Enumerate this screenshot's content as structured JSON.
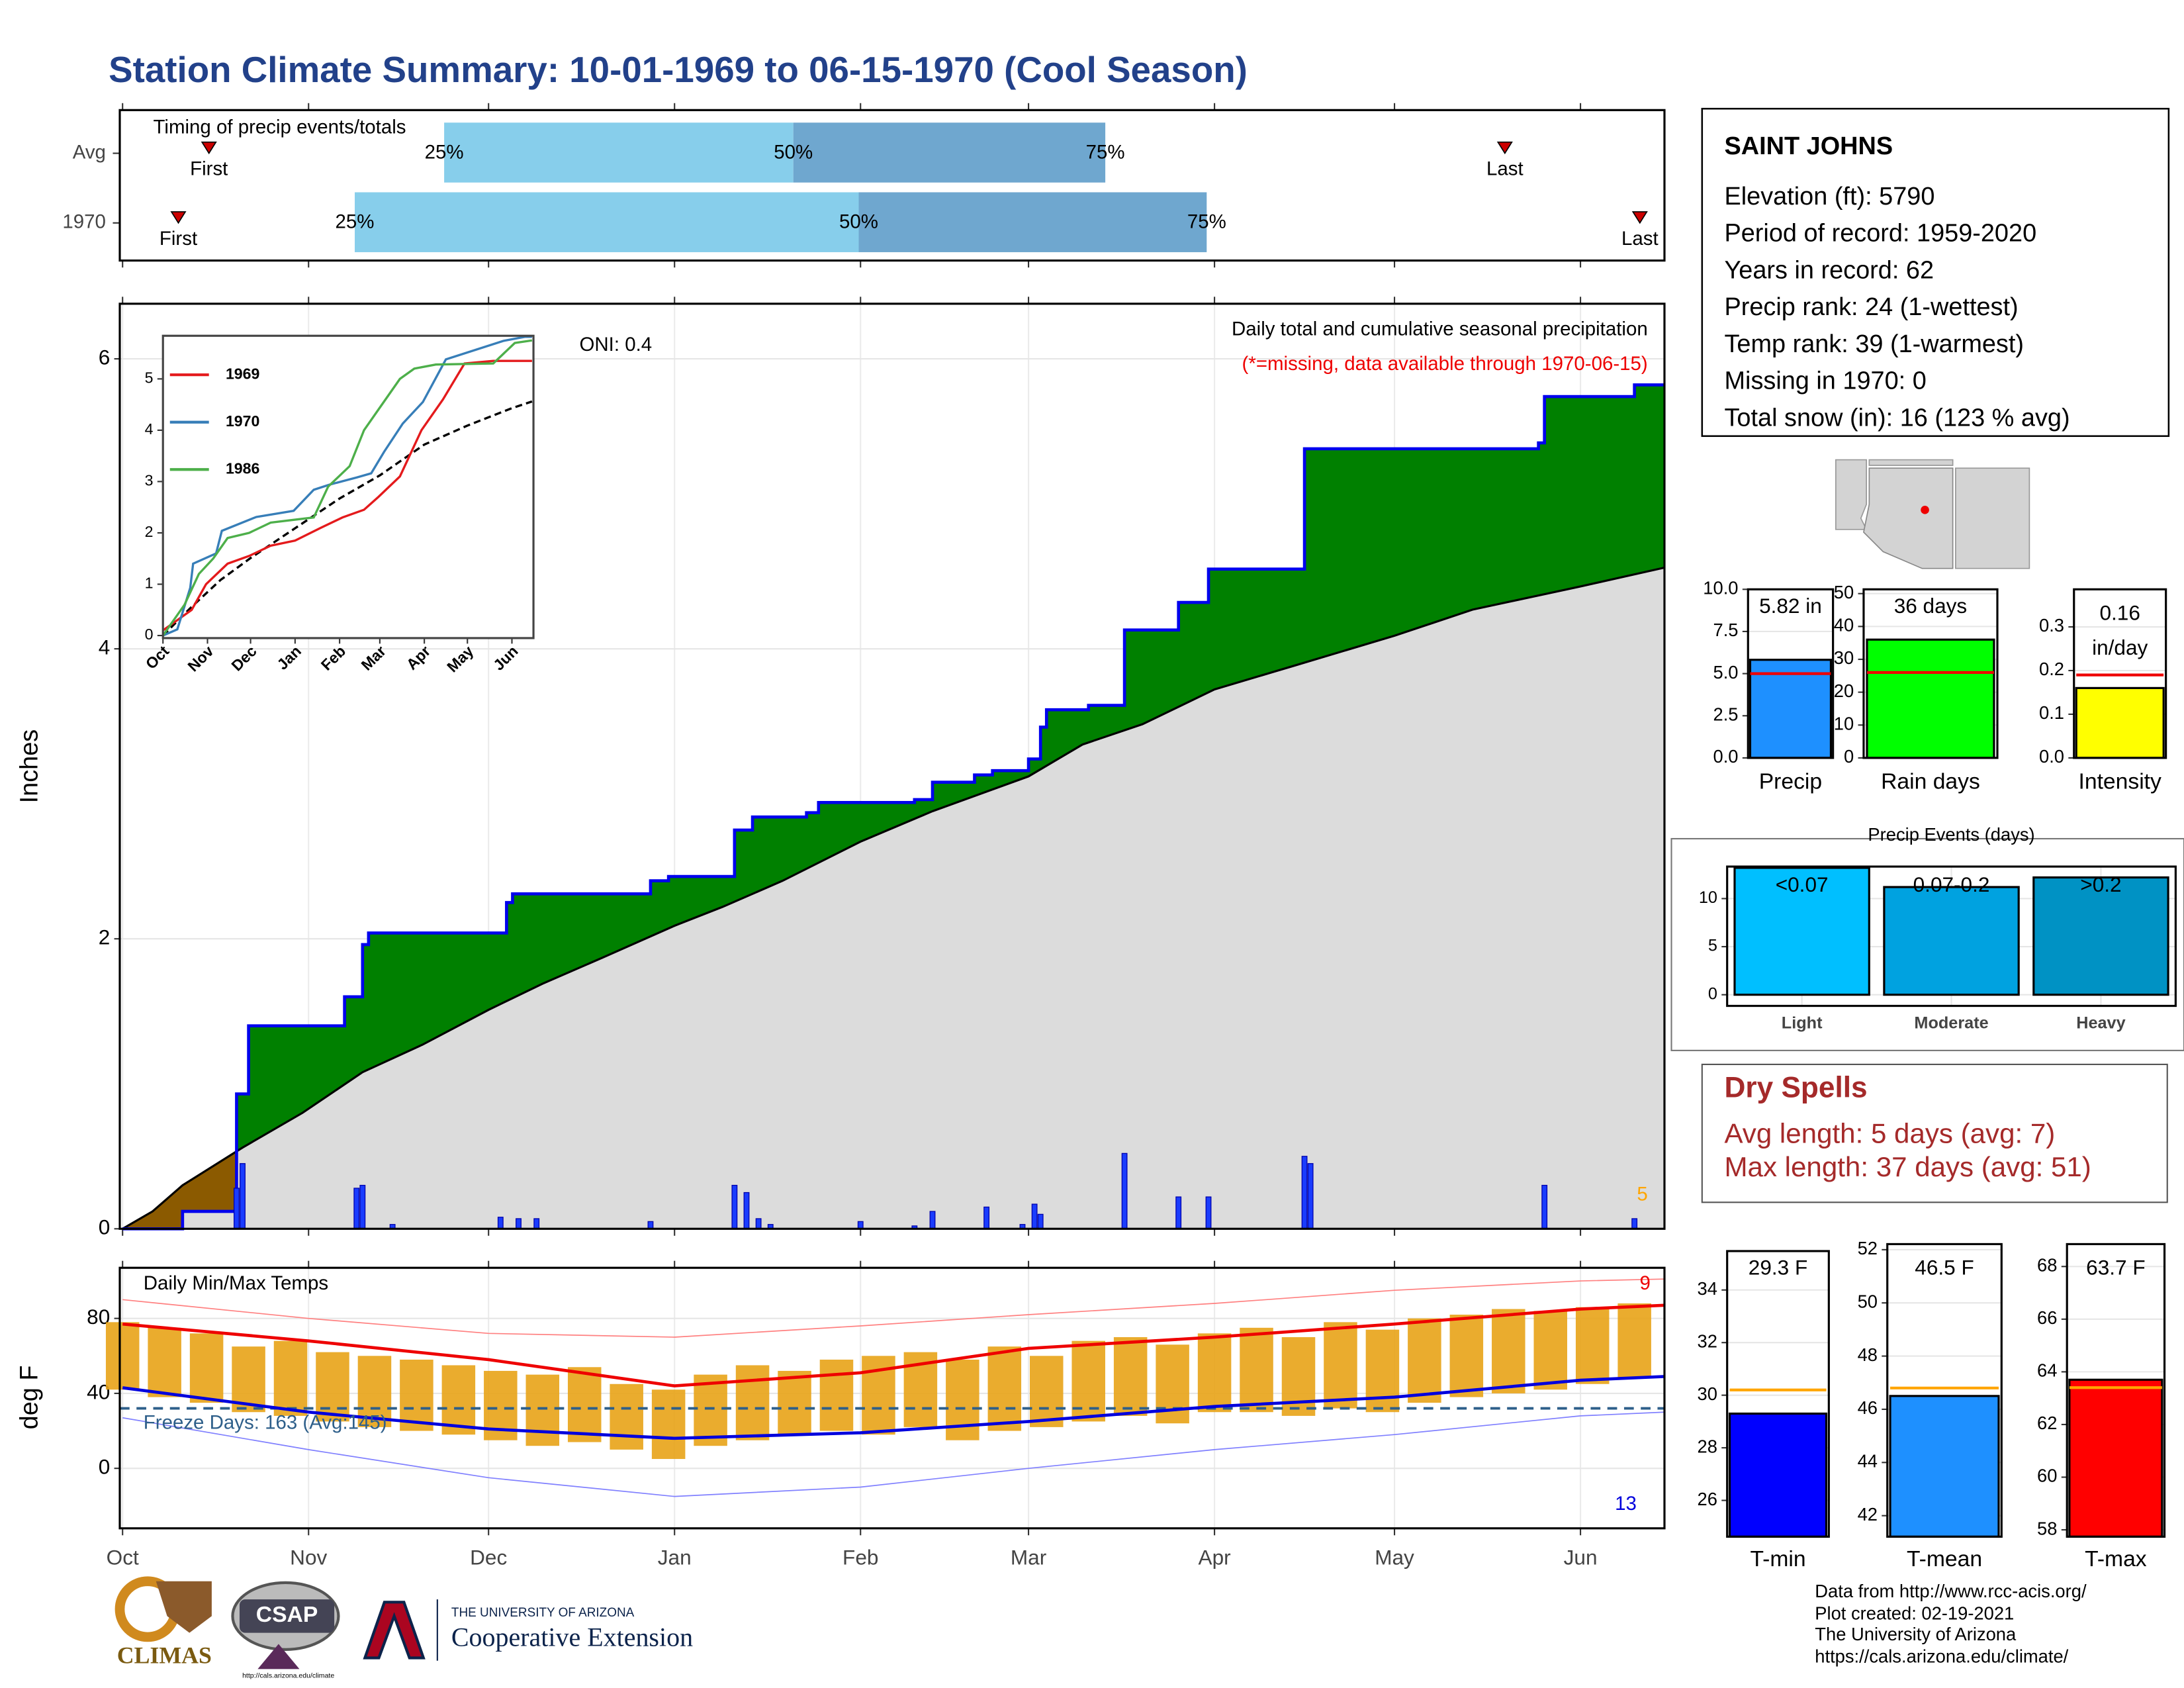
{
  "title": "Station Climate Summary: 10-01-1969 to 06-15-1970 (Cool Season)",
  "station": {
    "name": "SAINT JOHNS",
    "lines": [
      "Elevation (ft): 5790",
      "Period of record: 1959-2020",
      "Years in record: 62",
      "Precip rank: 24 (1-wettest)",
      "Temp rank: 39 (1-warmest)",
      "Missing in 1970: 0",
      "Total snow (in): 16 (123 % avg)"
    ]
  },
  "dry_spells": {
    "title": "Dry Spells",
    "lines": [
      "Avg length: 5 days (avg: 7)",
      "Max length: 37 days (avg: 51)"
    ]
  },
  "footer": [
    "Data from http://www.rcc-acis.org/",
    "Plot created: 02-19-2021",
    "The University of Arizona",
    "https://cals.arizona.edu/climate/"
  ],
  "logos": {
    "climas": "CLIMAS",
    "csap": "CSAP",
    "csap_url": "http://cals.arizona.edu/climate",
    "university": "THE UNIVERSITY OF ARIZONA",
    "extension": "Cooperative Extension"
  },
  "chart_data": [
    {
      "type": "timing",
      "title": "Timing of precip events/totals",
      "categories": [
        "Avg",
        "1970"
      ],
      "xlim": [
        0,
        257
      ],
      "xticks": [
        0,
        31,
        61,
        92,
        123,
        151,
        182,
        212,
        243
      ],
      "labels": {
        "first": "First",
        "last": "Last",
        "q25": "25%",
        "q50": "50%",
        "q75": "75%"
      },
      "rows": [
        {
          "first": 14.4,
          "q25": 53.6,
          "q50": 111.8,
          "q75": 163.8,
          "last": 230.4
        },
        {
          "first": 9.3,
          "q25": 38.7,
          "q50": 122.7,
          "q75": 180.7,
          "last": 252.9
        }
      ],
      "colors": {
        "early": "#87ceeb",
        "late": "#6fa7cf",
        "marker": "#cc0000"
      }
    },
    {
      "type": "cumulative",
      "ylabel": "Inches",
      "xlim": [
        0,
        257
      ],
      "ylim": [
        0,
        6.38
      ],
      "yticks": [
        0,
        2,
        4,
        6
      ],
      "xticks": [
        0,
        31,
        61,
        92,
        123,
        151,
        182,
        212,
        243
      ],
      "grid": true,
      "annotations": {
        "oni": "ONI: 0.4",
        "title": "Daily total and cumulative seasonal precipitation",
        "missing": "(*=missing, data available through 1970-06-15)",
        "snow_count": "5"
      },
      "observed": {
        "color": "#0000ee",
        "fill": "#008000",
        "x": [
          0,
          10,
          10,
          19,
          19,
          21,
          21,
          37,
          37,
          40,
          40,
          41,
          41,
          64,
          64,
          65,
          65,
          88,
          88,
          91,
          91,
          102,
          102,
          105,
          105,
          114,
          114,
          116,
          116,
          132,
          132,
          135,
          135,
          142,
          142,
          145,
          145,
          151,
          151,
          153,
          153,
          154,
          154,
          161,
          161,
          167,
          167,
          176,
          176,
          181,
          181,
          197,
          197,
          236,
          236,
          237,
          237,
          252,
          252,
          257
        ],
        "values": [
          0,
          0,
          0.12,
          0.12,
          0.93,
          0.93,
          1.4,
          1.4,
          1.6,
          1.6,
          1.96,
          1.96,
          2.04,
          2.04,
          2.25,
          2.25,
          2.31,
          2.31,
          2.4,
          2.4,
          2.43,
          2.43,
          2.75,
          2.75,
          2.84,
          2.84,
          2.87,
          2.87,
          2.94,
          2.94,
          2.96,
          2.96,
          3.08,
          3.08,
          3.13,
          3.13,
          3.16,
          3.16,
          3.24,
          3.24,
          3.46,
          3.46,
          3.58,
          3.58,
          3.61,
          3.61,
          4.13,
          4.13,
          4.32,
          4.32,
          4.55,
          4.55,
          5.38,
          5.38,
          5.42,
          5.42,
          5.74,
          5.74,
          5.82,
          5.82
        ]
      },
      "average": {
        "color": "#000000",
        "fill": "#dcdcdc",
        "below_fill": "#8b5a00",
        "x": [
          0,
          5,
          10,
          20,
          30,
          40,
          50,
          61,
          70,
          80,
          92,
          100,
          110,
          123,
          135,
          151,
          160,
          170,
          182,
          195,
          212,
          225,
          243,
          257
        ],
        "values": [
          0,
          0.12,
          0.3,
          0.56,
          0.8,
          1.08,
          1.27,
          1.51,
          1.69,
          1.87,
          2.09,
          2.22,
          2.4,
          2.67,
          2.88,
          3.12,
          3.34,
          3.48,
          3.72,
          3.88,
          4.09,
          4.27,
          4.43,
          4.56
        ]
      },
      "daily": {
        "color": "#1a3cff",
        "x": [
          19,
          20,
          39,
          40,
          45,
          63,
          66,
          69,
          88,
          102,
          104,
          106,
          108,
          123,
          132,
          135,
          144,
          150,
          152,
          153,
          167,
          176,
          181,
          197,
          198,
          237,
          252
        ],
        "values": [
          0.28,
          0.45,
          0.28,
          0.3,
          0.03,
          0.08,
          0.07,
          0.07,
          0.05,
          0.3,
          0.25,
          0.07,
          0.03,
          0.05,
          0.02,
          0.12,
          0.15,
          0.03,
          0.17,
          0.1,
          0.52,
          0.22,
          0.22,
          0.5,
          0.45,
          0.3,
          0.07
        ]
      },
      "annotation_colors": {
        "missing": "#ee0000",
        "snow_count": "#ffa500"
      }
    },
    {
      "type": "line",
      "xlim": [
        0,
        258
      ],
      "ylim": [
        -0.05,
        5.84
      ],
      "yticks": [
        0,
        1,
        2,
        3,
        4,
        5
      ],
      "xticks": [
        {
          "value": 0,
          "label": "Oct"
        },
        {
          "value": 31,
          "label": "Nov"
        },
        {
          "value": 61,
          "label": "Dec"
        },
        {
          "value": 92,
          "label": "Jan"
        },
        {
          "value": 123,
          "label": "Feb"
        },
        {
          "value": 151,
          "label": "Mar"
        },
        {
          "value": 182,
          "label": "Apr"
        },
        {
          "value": 212,
          "label": "May"
        },
        {
          "value": 243,
          "label": "Jun"
        }
      ],
      "series": [
        {
          "name": "1969",
          "color": "#e41a1c",
          "x": [
            0,
            10,
            20,
            30,
            45,
            60,
            75,
            92,
            110,
            125,
            140,
            150,
            165,
            180,
            195,
            210,
            230,
            257
          ],
          "values": [
            0.1,
            0.3,
            0.5,
            1.0,
            1.4,
            1.55,
            1.75,
            1.85,
            2.1,
            2.3,
            2.45,
            2.7,
            3.1,
            4.0,
            4.6,
            5.3,
            5.35,
            5.35
          ]
        },
        {
          "name": "1970",
          "color": "#377eb8",
          "x": [
            0,
            10,
            19,
            21,
            37,
            41,
            65,
            91,
            105,
            116,
            135,
            145,
            154,
            167,
            181,
            197,
            237,
            252,
            257
          ],
          "values": [
            0,
            0.12,
            0.93,
            1.4,
            1.6,
            2.04,
            2.31,
            2.43,
            2.84,
            2.94,
            3.08,
            3.16,
            3.58,
            4.13,
            4.55,
            5.38,
            5.74,
            5.82,
            5.82
          ]
        },
        {
          "name": "1986",
          "color": "#4daf4a",
          "x": [
            0,
            15,
            25,
            35,
            45,
            60,
            75,
            90,
            105,
            115,
            130,
            140,
            150,
            165,
            175,
            190,
            230,
            245,
            257
          ],
          "values": [
            0,
            0.6,
            1.2,
            1.5,
            1.9,
            2.0,
            2.2,
            2.25,
            2.3,
            2.9,
            3.3,
            4.0,
            4.4,
            5.0,
            5.2,
            5.28,
            5.3,
            5.7,
            5.75
          ]
        }
      ],
      "average": {
        "color": "#000000",
        "x": [
          0,
          20,
          40,
          61,
          92,
          123,
          151,
          182,
          212,
          243,
          257
        ],
        "values": [
          0,
          0.56,
          1.08,
          1.51,
          2.09,
          2.67,
          3.12,
          3.72,
          4.09,
          4.43,
          4.56
        ]
      }
    },
    {
      "type": "temps",
      "title": "Daily Min/Max Temps",
      "ylabel": "deg F",
      "xlim": [
        0,
        257
      ],
      "ylim": [
        -32,
        107
      ],
      "yticks": [
        0,
        40,
        80
      ],
      "grid": true,
      "xticks": [
        {
          "value": 0,
          "label": "Oct"
        },
        {
          "value": 31,
          "label": "Nov"
        },
        {
          "value": 61,
          "label": "Dec"
        },
        {
          "value": 92,
          "label": "Jan"
        },
        {
          "value": 123,
          "label": "Feb"
        },
        {
          "value": 151,
          "label": "Mar"
        },
        {
          "value": 182,
          "label": "Apr"
        },
        {
          "value": 212,
          "label": "May"
        },
        {
          "value": 243,
          "label": "Jun"
        }
      ],
      "freeze_line": 32,
      "freeze_text": "Freeze Days: 163 (Avg:145)",
      "record_high_count": "9",
      "record_low_count": "13",
      "daily": {
        "color": "#e8a317",
        "x": [
          0,
          7,
          14,
          21,
          28,
          35,
          42,
          49,
          56,
          63,
          70,
          77,
          84,
          91,
          98,
          105,
          112,
          119,
          126,
          133,
          140,
          147,
          154,
          161,
          168,
          175,
          182,
          189,
          196,
          203,
          210,
          217,
          224,
          231,
          238,
          245,
          252
        ],
        "max": [
          78,
          75,
          72,
          65,
          68,
          62,
          60,
          58,
          55,
          52,
          50,
          54,
          45,
          42,
          50,
          55,
          52,
          58,
          60,
          62,
          58,
          65,
          60,
          68,
          70,
          66,
          72,
          75,
          70,
          78,
          74,
          80,
          82,
          85,
          84,
          86,
          88
        ],
        "min": [
          42,
          38,
          35,
          30,
          28,
          25,
          22,
          20,
          18,
          15,
          12,
          14,
          10,
          5,
          12,
          15,
          18,
          20,
          18,
          22,
          15,
          20,
          22,
          25,
          28,
          24,
          30,
          30,
          28,
          32,
          30,
          35,
          38,
          40,
          42,
          45,
          48
        ]
      },
      "normals": {
        "x": [
          0,
          31,
          61,
          92,
          123,
          151,
          182,
          212,
          243,
          257
        ],
        "max": [
          77,
          68,
          58,
          44,
          51,
          64,
          70,
          77,
          85,
          87
        ],
        "min": [
          43,
          30,
          21,
          16,
          19,
          25,
          33,
          38,
          47,
          49
        ],
        "record_high": [
          90,
          80,
          72,
          70,
          76,
          82,
          88,
          95,
          100,
          101
        ],
        "record_low": [
          27,
          10,
          -5,
          -15,
          -10,
          0,
          10,
          18,
          28,
          30
        ],
        "max_color": "#ee0000",
        "min_color": "#0000dd",
        "record_high_color": "#ff8080",
        "record_low_color": "#8080ff",
        "freeze_color": "#2e5f8a"
      }
    },
    {
      "type": "bar",
      "categories": [
        "Precip"
      ],
      "values": [
        5.82
      ],
      "value_labels": [
        "5.82 in"
      ],
      "average": [
        5.0
      ],
      "average_color": "#ee0000",
      "color": "#1e90ff",
      "ylim": [
        0,
        10
      ],
      "yticks": [
        {
          "value": 0,
          "label": "0.0"
        },
        {
          "value": 2.5,
          "label": "2.5"
        },
        {
          "value": 5,
          "label": "5.0"
        },
        {
          "value": 7.5,
          "label": "7.5"
        },
        {
          "value": 10,
          "label": "10.0"
        }
      ],
      "grid": true
    },
    {
      "type": "bar",
      "categories": [
        "Rain days"
      ],
      "values": [
        36
      ],
      "value_labels": [
        "36 days"
      ],
      "average": [
        26
      ],
      "average_color": "#ee0000",
      "color": "#00ff00",
      "ylim": [
        0,
        51.3
      ],
      "yticks": [
        0,
        10,
        20,
        30,
        40,
        50
      ],
      "grid": true
    },
    {
      "type": "bar",
      "categories": [
        "Intensity"
      ],
      "values": [
        0.16
      ],
      "value_labels": [
        "0.16"
      ],
      "unit_label": "in/day",
      "average": [
        0.19
      ],
      "average_color": "#ee0000",
      "color": "#ffff00",
      "ylim": [
        0,
        0.386
      ],
      "yticks": [
        {
          "value": 0,
          "label": "0.0"
        },
        {
          "value": 0.1,
          "label": "0.1"
        },
        {
          "value": 0.2,
          "label": "0.2"
        },
        {
          "value": 0.3,
          "label": "0.3"
        }
      ],
      "grid": true
    },
    {
      "type": "bar",
      "title": "Precip Events (days)",
      "categories": [
        "Light",
        "Moderate",
        "Heavy"
      ],
      "values": [
        13.2,
        11.2,
        12.2
      ],
      "bar_labels": [
        "<0.07",
        "0.07-0.2",
        ">0.2"
      ],
      "colors": [
        "#00bfff",
        "#00a2e0",
        "#0092c4"
      ],
      "ylim": [
        -1.16,
        13.33
      ],
      "yticks": [
        0,
        5,
        10
      ],
      "grid": true
    },
    {
      "type": "bar",
      "categories": [
        "T-min"
      ],
      "values": [
        29.3
      ],
      "value_labels": [
        "29.3 F"
      ],
      "average": [
        30.2
      ],
      "average_color": "#ffa500",
      "color": "#0000ff",
      "ylim": [
        24.62,
        35.48
      ],
      "yticks": [
        26,
        28,
        30,
        32,
        34
      ],
      "grid": true
    },
    {
      "type": "bar",
      "categories": [
        "T-mean"
      ],
      "values": [
        46.5
      ],
      "value_labels": [
        "46.5 F"
      ],
      "average": [
        46.8
      ],
      "average_color": "#ffa500",
      "color": "#1e90ff",
      "ylim": [
        41.21,
        52.21
      ],
      "yticks": [
        42,
        44,
        46,
        48,
        50,
        52
      ],
      "grid": true
    },
    {
      "type": "bar",
      "categories": [
        "T-max"
      ],
      "values": [
        63.7
      ],
      "value_labels": [
        "63.7 F"
      ],
      "average": [
        63.4
      ],
      "average_color": "#ffa500",
      "color": "#ff0000",
      "ylim": [
        57.74,
        68.85
      ],
      "yticks": [
        58,
        60,
        62,
        64,
        66,
        68
      ],
      "grid": true
    }
  ]
}
